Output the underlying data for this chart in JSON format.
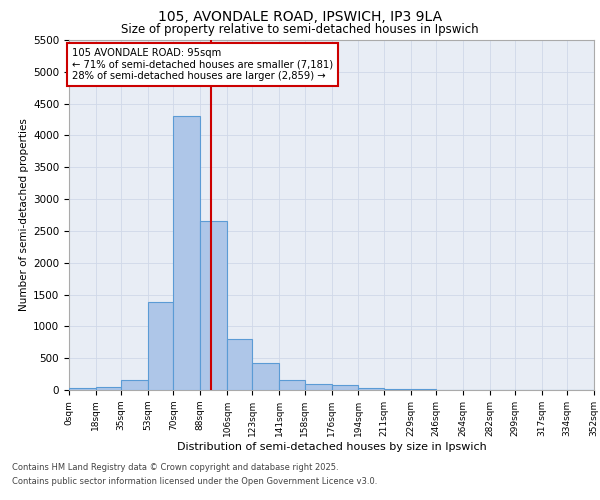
{
  "title_line1": "105, AVONDALE ROAD, IPSWICH, IP3 9LA",
  "title_line2": "Size of property relative to semi-detached houses in Ipswich",
  "xlabel": "Distribution of semi-detached houses by size in Ipswich",
  "ylabel": "Number of semi-detached properties",
  "property_label": "105 AVONDALE ROAD: 95sqm",
  "pct_smaller": 71,
  "count_smaller": 7181,
  "pct_larger": 28,
  "count_larger": 2859,
  "bin_labels": [
    "0sqm",
    "18sqm",
    "35sqm",
    "53sqm",
    "70sqm",
    "88sqm",
    "106sqm",
    "123sqm",
    "141sqm",
    "158sqm",
    "176sqm",
    "194sqm",
    "211sqm",
    "229sqm",
    "246sqm",
    "264sqm",
    "282sqm",
    "299sqm",
    "317sqm",
    "334sqm",
    "352sqm"
  ],
  "bin_edges": [
    0,
    18,
    35,
    53,
    70,
    88,
    106,
    123,
    141,
    158,
    176,
    194,
    211,
    229,
    246,
    264,
    282,
    299,
    317,
    334,
    352
  ],
  "bar_heights": [
    30,
    50,
    150,
    1380,
    4300,
    2650,
    800,
    420,
    150,
    100,
    80,
    30,
    15,
    8,
    4,
    2,
    1,
    1,
    0,
    0
  ],
  "bar_color": "#aec6e8",
  "bar_edge_color": "#5b9bd5",
  "vertical_line_x": 95,
  "vertical_line_color": "#cc0000",
  "annotation_box_color": "#cc0000",
  "grid_color": "#d0d8e8",
  "background_color": "#e8edf5",
  "footer_line1": "Contains HM Land Registry data © Crown copyright and database right 2025.",
  "footer_line2": "Contains public sector information licensed under the Open Government Licence v3.0.",
  "ylim": [
    0,
    5500
  ],
  "yticks": [
    0,
    500,
    1000,
    1500,
    2000,
    2500,
    3000,
    3500,
    4000,
    4500,
    5000,
    5500
  ]
}
